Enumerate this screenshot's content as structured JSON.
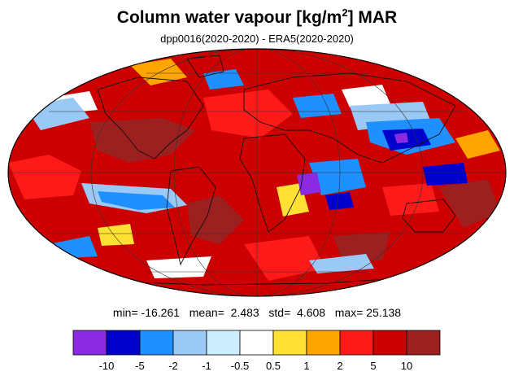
{
  "title": {
    "main": "Column water vapour [kg/m",
    "superscript": "2",
    "suffix": "] MAR",
    "subtitle": "dpp0016(2020-2020) - ERA5(2020-2020)"
  },
  "stats": {
    "min_label": "min=",
    "min": "-16.261",
    "mean_label": "mean=",
    "mean": "2.483",
    "std_label": "std=",
    "std": "4.608",
    "max_label": "max=",
    "max": "25.138"
  },
  "colorbar": {
    "colors": [
      "#8a2be2",
      "#0000cd",
      "#1e90ff",
      "#9ac9f5",
      "#cdeeff",
      "#ffffff",
      "#ffe033",
      "#ffa500",
      "#ff1a1a",
      "#cc0000",
      "#9c2020"
    ],
    "labels": [
      "-10",
      "-5",
      "-2",
      "-1",
      "-0.5",
      "0.5",
      "1",
      "2",
      "5",
      "10"
    ]
  },
  "map": {
    "projection": "mollweide",
    "background_color": "#cc0000",
    "anomaly_colors": {
      "strong_positive": "#9c2020",
      "positive": "#ff1a1a",
      "weak_positive": "#ffa500",
      "slight_positive": "#ffe033",
      "neutral": "#ffffff",
      "slight_negative": "#cdeeff",
      "weak_negative": "#9ac9f5",
      "negative": "#1e90ff",
      "strong_negative": "#0000cd",
      "extreme_negative": "#8a2be2"
    }
  }
}
